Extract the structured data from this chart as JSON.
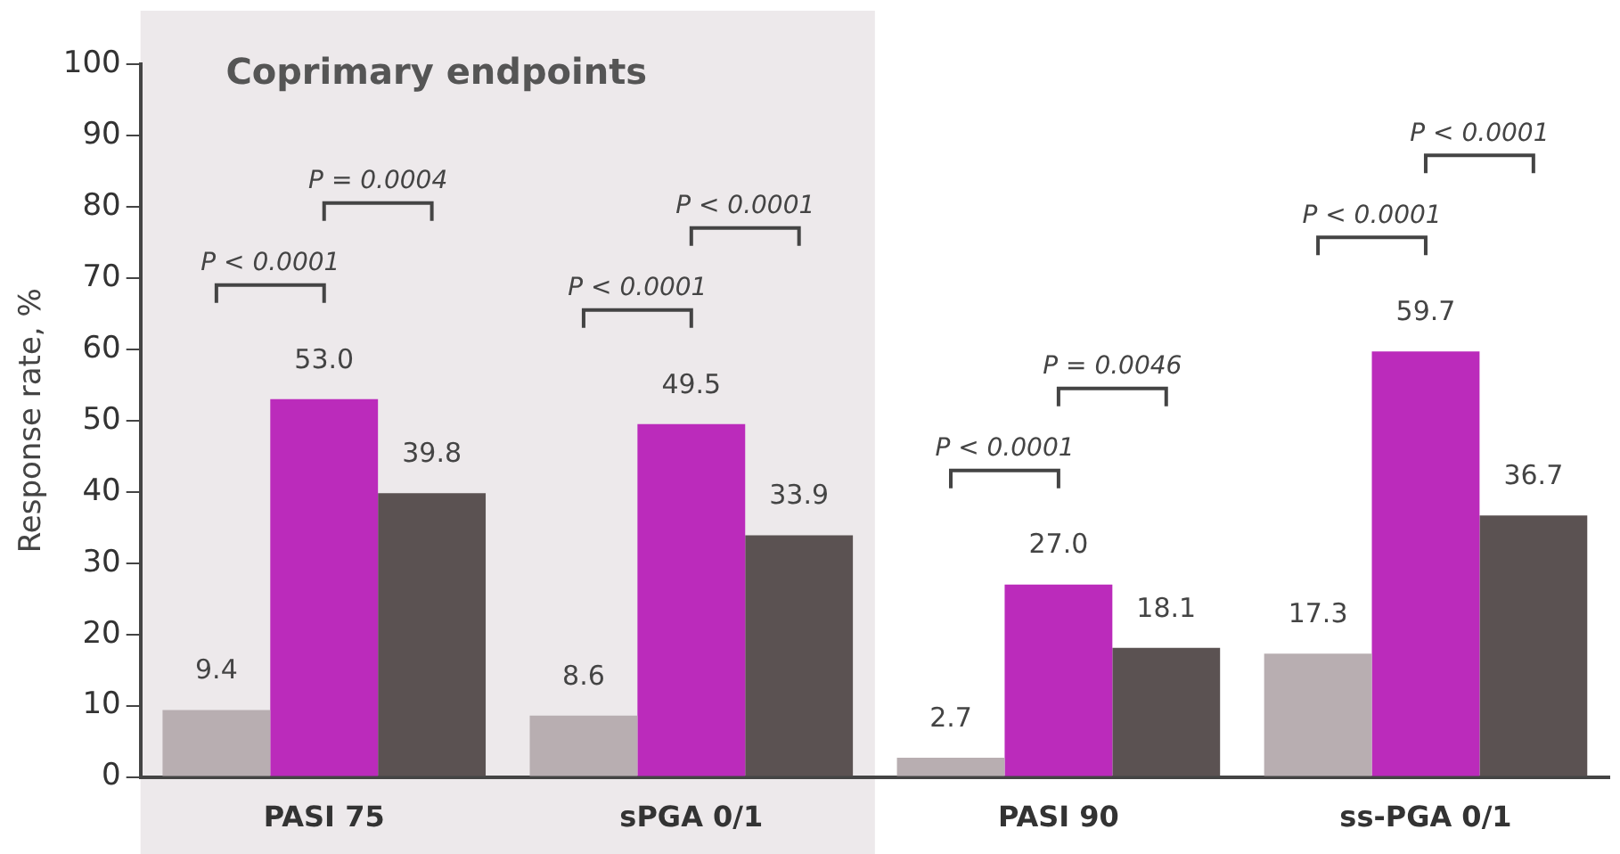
{
  "chart_data": {
    "type": "bar",
    "ylabel": "Response rate, %",
    "categories": [
      "PASI 75",
      "sPGA 0/1",
      "PASI 90",
      "ss-PGA 0/1"
    ],
    "series": [
      {
        "color": "#b8aeb1",
        "values": [
          9.4,
          8.6,
          2.7,
          17.3
        ],
        "value_labels": [
          "9.4",
          "8.6",
          "2.7",
          "17.3"
        ]
      },
      {
        "color": "#bb2bbb",
        "values": [
          53.0,
          49.5,
          27.0,
          59.7
        ],
        "value_labels": [
          "53.0",
          "49.5",
          "27.0",
          "59.7"
        ]
      },
      {
        "color": "#5b5252",
        "values": [
          39.8,
          33.9,
          18.1,
          36.7
        ],
        "value_labels": [
          "39.8",
          "33.9",
          "18.1",
          "36.7"
        ]
      }
    ],
    "ylim": [
      0,
      100
    ],
    "yticks": [
      0,
      10,
      20,
      30,
      40,
      50,
      60,
      70,
      80,
      90,
      100
    ],
    "bands": [
      {
        "axis": "x",
        "from": "PASI 75",
        "to": "sPGA 0/1",
        "label": "Coprimary endpoints",
        "color": "#ede9eb"
      }
    ],
    "annotations": [
      "P < 0.0001",
      "P = 0.0004",
      "P < 0.0001",
      "P < 0.0001",
      "P < 0.0001",
      "P = 0.0046",
      "P < 0.0001",
      "P < 0.0001"
    ]
  }
}
